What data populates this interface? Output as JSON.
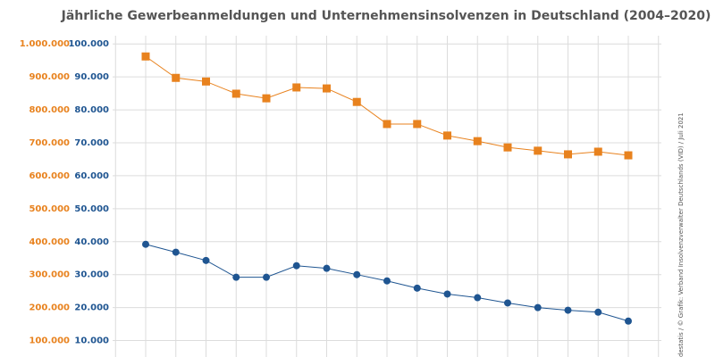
{
  "chart_data": {
    "type": "line",
    "title": "Jährliche Gewerbeanmeldungen und Unternehmensinsolvenzen in Deutschland (2004–2020)",
    "source": "destatis / © Grafik: Verband Insolvenzverwalter Deutschlands (VID) / Juli 2021",
    "grid": true,
    "ylim": [
      50000,
      1025000
    ],
    "yticks": [
      {
        "value": 100000,
        "label": "100.000"
      },
      {
        "value": 200000,
        "label": "200.000"
      },
      {
        "value": 300000,
        "label": "300.000"
      },
      {
        "value": 400000,
        "label": "400.000"
      },
      {
        "value": 500000,
        "label": "500.000"
      },
      {
        "value": 600000,
        "label": "600.000"
      },
      {
        "value": 700000,
        "label": "700.000"
      },
      {
        "value": 800000,
        "label": "800.000"
      },
      {
        "value": 900000,
        "label": "900.000"
      },
      {
        "value": 1000000,
        "label": "1.000.000"
      }
    ],
    "y2lim": [
      5000,
      102500
    ],
    "y2ticks": [
      {
        "value": 10000,
        "label": "10.000"
      },
      {
        "value": 20000,
        "label": "20.000"
      },
      {
        "value": 30000,
        "label": "30.000"
      },
      {
        "value": 40000,
        "label": "40.000"
      },
      {
        "value": 50000,
        "label": "50.000"
      },
      {
        "value": 60000,
        "label": "60.000"
      },
      {
        "value": 70000,
        "label": "70.000"
      },
      {
        "value": 80000,
        "label": "80.000"
      },
      {
        "value": 90000,
        "label": "90.000"
      },
      {
        "value": 100000,
        "label": "100.000"
      }
    ],
    "series": [
      {
        "color": "#e8821e",
        "marker": "square",
        "values": [
          962000,
          897000,
          886000,
          849000,
          835000,
          868000,
          865000,
          824000,
          757000,
          757000,
          722000,
          705000,
          686000,
          676000,
          665000,
          673000,
          662000
        ]
      },
      {
        "color": "#1f5591",
        "marker": "circle",
        "axis": "y2",
        "values": [
          39200,
          36800,
          34300,
          29200,
          29200,
          32700,
          31900,
          30000,
          28100,
          25900,
          24100,
          23000,
          21400,
          20000,
          19200,
          18600,
          15900
        ]
      }
    ]
  }
}
